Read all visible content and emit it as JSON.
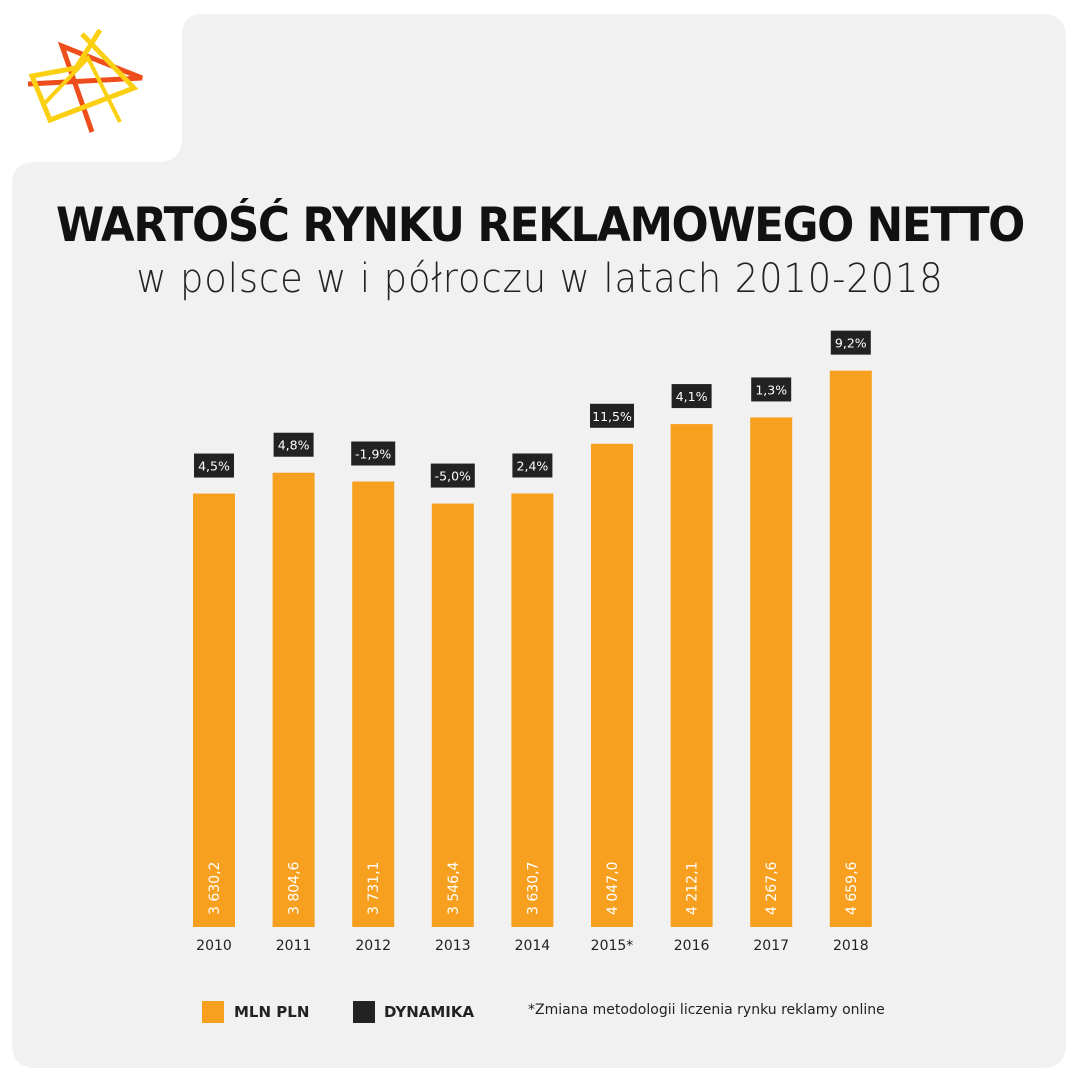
{
  "header": {
    "title": "WARTOŚĆ RYNKU REKLAMOWEGO NETTO",
    "subtitle": "w polsce w i półroczu w latach 2010-2018"
  },
  "colors": {
    "bar": "#f7a01f",
    "dynamic_box": "#222222",
    "card_bg": "#f1f1f1",
    "logo_orange": "#ee4d1c",
    "logo_yellow": "#fbd012"
  },
  "legend": {
    "items": [
      {
        "label": "MLN PLN",
        "color": "#f7a01f"
      },
      {
        "label": "DYNAMIKA",
        "color": "#222222"
      }
    ],
    "note": "*Zmiana metodologii liczenia rynku reklamy online"
  },
  "chart_data": {
    "type": "bar",
    "categories": [
      "2010",
      "2011",
      "2012",
      "2013",
      "2014",
      "2015*",
      "2016",
      "2017",
      "2018"
    ],
    "series": [
      {
        "name": "MLN PLN",
        "values": [
          3630.2,
          3804.6,
          3731.1,
          3546.4,
          3630.7,
          4047.0,
          4212.1,
          4267.6,
          4659.6
        ],
        "labels": [
          "3 630,2",
          "3 804,6",
          "3 731,1",
          "3 546,4",
          "3 630,7",
          "4 047,0",
          "4 212,1",
          "4 267,6",
          "4 659,6"
        ]
      },
      {
        "name": "DYNAMIKA",
        "values": [
          4.5,
          4.8,
          -1.9,
          -5.0,
          2.4,
          11.5,
          4.1,
          1.3,
          9.2
        ],
        "labels": [
          "4,5%",
          "4,8%",
          "-1,9%",
          "-5,0%",
          "2,4%",
          "11,5%",
          "4,1%",
          "1,3%",
          "9,2%"
        ]
      }
    ],
    "title": "WARTOŚĆ RYNKU REKLAMOWEGO NETTO",
    "subtitle": "w polsce w i półroczu w latach 2010-2018",
    "xlabel": "",
    "ylabel": "",
    "grid": false,
    "legend_position": "bottom-left"
  }
}
